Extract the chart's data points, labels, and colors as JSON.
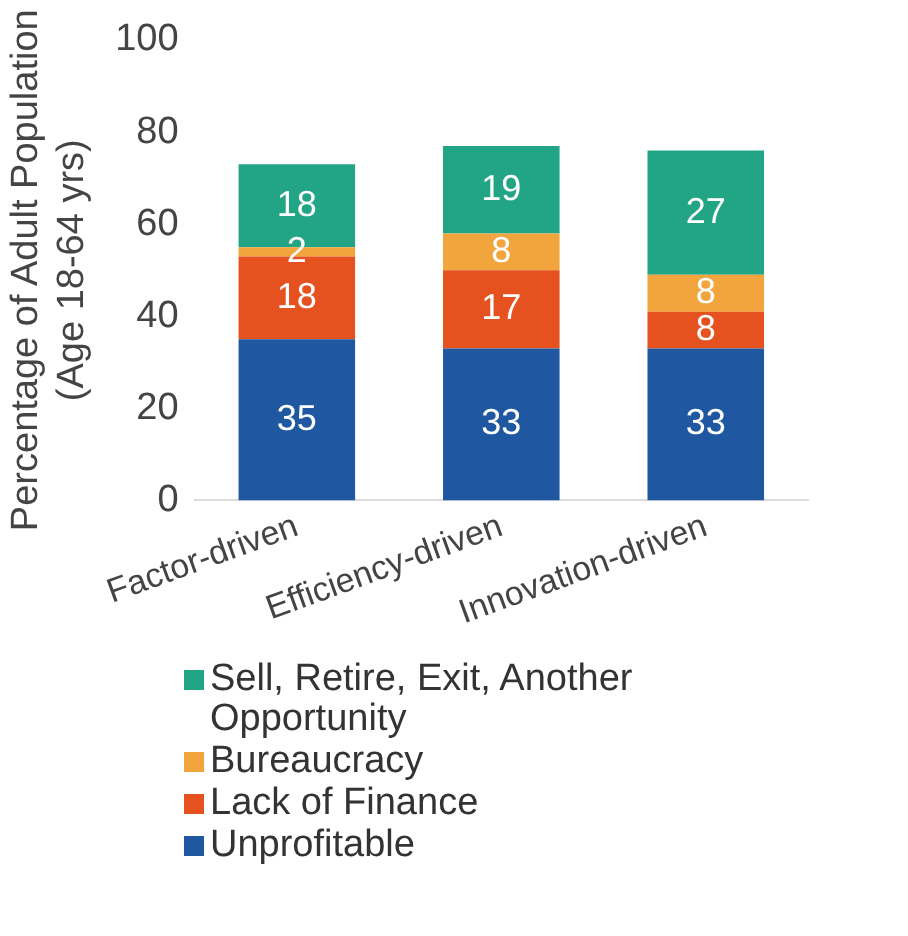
{
  "chart_data": {
    "type": "bar",
    "stacked": true,
    "ylabel": "Percentage of Adult Population\n(Age 18-64 yrs)",
    "categories": [
      "Factor-driven",
      "Efficiency-driven",
      "Innovation-driven"
    ],
    "series": [
      {
        "name": "Unprofitable",
        "color": "#1f58a0",
        "values": [
          35,
          33,
          33
        ]
      },
      {
        "name": "Lack of Finance",
        "color": "#e5521f",
        "values": [
          18,
          17,
          8
        ]
      },
      {
        "name": "Bureaucracy",
        "color": "#f2a53c",
        "values": [
          2,
          8,
          8
        ]
      },
      {
        "name": "Sell, Retire, Exit, Another Opportunity",
        "color": "#22a585",
        "values": [
          18,
          19,
          27
        ]
      }
    ],
    "ylim": [
      0,
      100
    ],
    "yticks": [
      0,
      20,
      40,
      60,
      80,
      100
    ],
    "grid": false,
    "legend": "bottom",
    "data_labels": true
  }
}
